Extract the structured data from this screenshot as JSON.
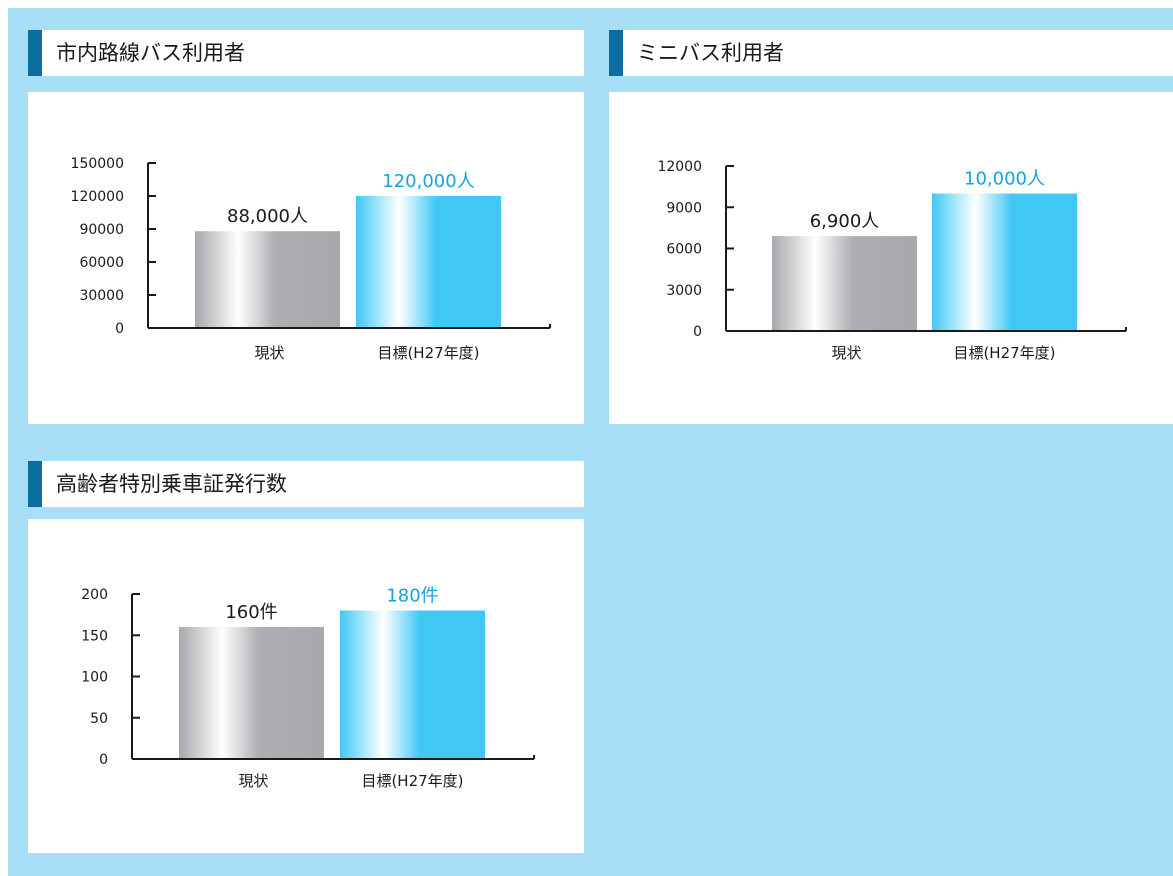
{
  "colors": {
    "page_background": "#a8dff6",
    "accent": "#0a6fa0",
    "current_value_label": "#1a1a1a",
    "target_value_label": "#16a3dc",
    "bar_current": [
      "#a7a8ab",
      "#ffffff",
      "#aeafb2",
      "#a7a8ab"
    ],
    "bar_target": [
      "#42c8f4",
      "#ffffff",
      "#42c8f4",
      "#42c8f4"
    ]
  },
  "chart_data": [
    {
      "type": "bar",
      "title": "市内路線バス利用者",
      "categories": [
        "現状",
        "目標(H27年度)"
      ],
      "values": [
        88000,
        120000
      ],
      "value_labels": [
        "88,000人",
        "120,000人"
      ],
      "yticks": [
        "0",
        "30000",
        "60000",
        "90000",
        "120000",
        "150000"
      ],
      "ylim": [
        0,
        150000
      ],
      "grid": false
    },
    {
      "type": "bar",
      "title": "ミニバス利用者",
      "categories": [
        "現状",
        "目標(H27年度)"
      ],
      "values": [
        6900,
        10000
      ],
      "value_labels": [
        "6,900人",
        "10,000人"
      ],
      "yticks": [
        "0",
        "3000",
        "6000",
        "9000",
        "12000"
      ],
      "ylim": [
        0,
        12000
      ],
      "grid": false
    },
    {
      "type": "bar",
      "title": "高齢者特別乗車証発行数",
      "categories": [
        "現状",
        "目標(H27年度)"
      ],
      "values": [
        160,
        180
      ],
      "value_labels": [
        "160件",
        "180件"
      ],
      "yticks": [
        "0",
        "50",
        "100",
        "150",
        "200"
      ],
      "ylim": [
        0,
        200
      ],
      "grid": false
    }
  ]
}
